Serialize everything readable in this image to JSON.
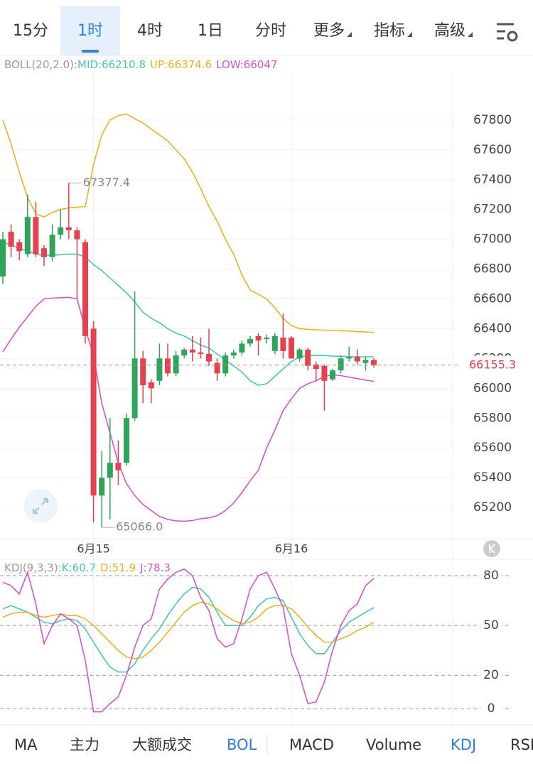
{
  "tabs": [
    "15分",
    "1时",
    "4时",
    "1日",
    "分时",
    "更多",
    "指标",
    "高级"
  ],
  "indicator_tabs": [
    "MA",
    "主力",
    "大额成交",
    "BOL",
    "MACD",
    "Volume",
    "KDJ",
    "RSI"
  ],
  "chart_data": [
    {
      "type": "candlestick",
      "indicator": "BOLL(20,2.0):",
      "categories": [
        null,
        null,
        null,
        null,
        null,
        null,
        null,
        null,
        null,
        null,
        null,
        "6月15",
        null,
        null,
        null,
        null,
        null,
        null,
        null,
        null,
        null,
        null,
        null,
        null,
        null,
        null,
        null,
        null,
        null,
        null,
        null,
        null,
        null,
        null,
        null,
        "6月16",
        null,
        null,
        null,
        null,
        null,
        null,
        null,
        null,
        null,
        null
      ],
      "open": [
        66750,
        67050,
        66980,
        66900,
        67150,
        66940,
        66880,
        67030,
        67080,
        67060,
        66980,
        66400,
        65280,
        65400,
        65500,
        65500,
        65800,
        66200,
        66040,
        66050,
        66200,
        66100,
        66220,
        66260,
        66240,
        66230,
        66170,
        66100,
        66220,
        66240,
        66300,
        66350,
        66330,
        66250,
        66340,
        66340,
        66200,
        66260,
        66160,
        66150,
        66060,
        66120,
        66200,
        66210,
        66170,
        66190
      ],
      "close": [
        67000,
        66950,
        66920,
        67150,
        66900,
        66880,
        67030,
        67080,
        67060,
        67000,
        66350,
        65280,
        65400,
        65500,
        65450,
        65800,
        66200,
        66020,
        66000,
        66200,
        66100,
        66220,
        66260,
        66240,
        66230,
        66180,
        66100,
        66220,
        66240,
        66300,
        66330,
        66320,
        66340,
        66350,
        66250,
        66200,
        66260,
        66150,
        66130,
        66050,
        66120,
        66200,
        66210,
        66180,
        66190,
        66155.3
      ],
      "high": [
        67050,
        67100,
        67000,
        67300,
        67250,
        66960,
        67100,
        67200,
        67377.4,
        67080,
        67000,
        66450,
        65580,
        65800,
        65650,
        65830,
        66650,
        66250,
        66060,
        66300,
        66300,
        66250,
        66270,
        66350,
        66340,
        66400,
        66200,
        66240,
        66260,
        66320,
        66350,
        66370,
        66360,
        66370,
        66500,
        66350,
        66270,
        66270,
        66180,
        66160,
        66130,
        66220,
        66280,
        66260,
        66210,
        66200
      ],
      "low": [
        66700,
        66880,
        66860,
        66880,
        66880,
        66820,
        66850,
        67000,
        67000,
        66600,
        66300,
        65100,
        65066,
        65120,
        65350,
        65480,
        65780,
        65900,
        65900,
        66020,
        66080,
        66080,
        66200,
        66180,
        66200,
        66150,
        66050,
        66080,
        66200,
        66220,
        66280,
        66220,
        66300,
        66230,
        66200,
        66200,
        66180,
        66120,
        66050,
        65850,
        66050,
        66100,
        66180,
        66160,
        66120,
        66140
      ],
      "up_color": "#e5414f",
      "down_color": "#2ea55a",
      "series": [
        {
          "name": "MID:",
          "color": "#4cc4b6",
          "values": [
            66980,
            66960,
            66940,
            66920,
            66900,
            66890,
            66893,
            66896,
            66900,
            66900,
            66880,
            66830,
            66790,
            66740,
            66690,
            66640,
            66580,
            66510,
            66470,
            66440,
            66400,
            66370,
            66350,
            66320,
            66290,
            66270,
            66230,
            66190,
            66150,
            66110,
            66050,
            66020,
            66030,
            66080,
            66130,
            66180,
            66210,
            66220,
            66220,
            66220,
            66215,
            66215,
            66212,
            66212,
            66211,
            66210.8
          ]
        },
        {
          "name": "UP:",
          "color": "#e6b524",
          "values": [
            67800,
            67640,
            67450,
            67280,
            67170,
            67150,
            67180,
            67200,
            67210,
            67215,
            67220,
            67500,
            67700,
            67800,
            67830,
            67840,
            67810,
            67780,
            67740,
            67700,
            67660,
            67600,
            67540,
            67450,
            67340,
            67220,
            67120,
            67000,
            66900,
            66760,
            66660,
            66630,
            66600,
            66540,
            66470,
            66420,
            66400,
            66395,
            66392,
            66390,
            66388,
            66386,
            66384,
            66380,
            66378,
            66374.6
          ]
        },
        {
          "name": "LOW:",
          "color": "#d256c8",
          "values": [
            66245,
            66330,
            66410,
            66480,
            66550,
            66600,
            66605,
            66608,
            66610,
            66600,
            66400,
            66220,
            65900,
            65700,
            65500,
            65360,
            65280,
            65220,
            65180,
            65140,
            65120,
            65110,
            65108,
            65112,
            65125,
            65130,
            65145,
            65180,
            65230,
            65300,
            65380,
            65450,
            65600,
            65720,
            65850,
            65930,
            66000,
            66030,
            66050,
            66080,
            66090,
            66085,
            66075,
            66065,
            66055,
            66047.0
          ]
        }
      ],
      "ylim": [
        65000,
        68100
      ],
      "yticks": [
        65200,
        65400,
        65600,
        65800,
        66000,
        66200,
        66400,
        66600,
        66800,
        67000,
        67200,
        67400,
        67600,
        67800
      ],
      "grid": true,
      "last_price": 66155.3,
      "extreme_labels": [
        67377.4,
        {
          "value": 65066,
          "label": "65066.0"
        }
      ]
    },
    {
      "type": "line",
      "indicator": "KDJ(9,3,3):",
      "series": [
        {
          "name": "K:",
          "color": "#4cc4b6",
          "values": [
            60,
            62,
            60,
            58,
            55,
            52,
            51,
            53,
            54,
            53,
            48,
            40,
            32,
            25,
            22,
            22,
            27,
            35,
            42,
            48,
            56,
            63,
            69,
            73,
            72,
            67,
            58,
            50,
            50,
            50,
            55,
            62,
            66,
            67,
            65,
            55,
            45,
            38,
            33,
            33,
            40,
            47,
            52,
            55,
            58,
            60.7
          ]
        },
        {
          "name": "D:",
          "color": "#e6b524",
          "values": [
            55,
            57,
            58,
            58,
            56,
            55,
            56,
            57,
            56,
            56,
            54,
            50,
            45,
            40,
            35,
            31,
            30,
            31,
            35,
            40,
            46,
            52,
            58,
            62,
            64,
            63,
            60,
            56,
            53,
            51,
            52,
            55,
            60,
            62,
            62,
            60,
            55,
            49,
            44,
            40,
            40,
            42,
            44,
            47,
            49,
            51.9
          ]
        },
        {
          "name": "J:",
          "color": "#d256c8",
          "values": [
            76,
            74,
            69,
            82,
            63,
            39,
            50,
            57,
            54,
            50,
            29,
            -2,
            -2,
            3,
            7,
            20,
            37,
            50,
            54,
            72,
            78,
            82,
            84,
            80,
            67,
            59,
            42,
            37,
            39,
            54,
            72,
            80,
            82,
            72,
            61,
            33,
            20,
            3,
            4,
            16,
            35,
            50,
            59,
            63,
            74,
            78.3
          ]
        }
      ],
      "ylim": [
        -9,
        91
      ],
      "yticks": [
        0,
        20,
        50,
        80
      ],
      "grid": true
    }
  ]
}
